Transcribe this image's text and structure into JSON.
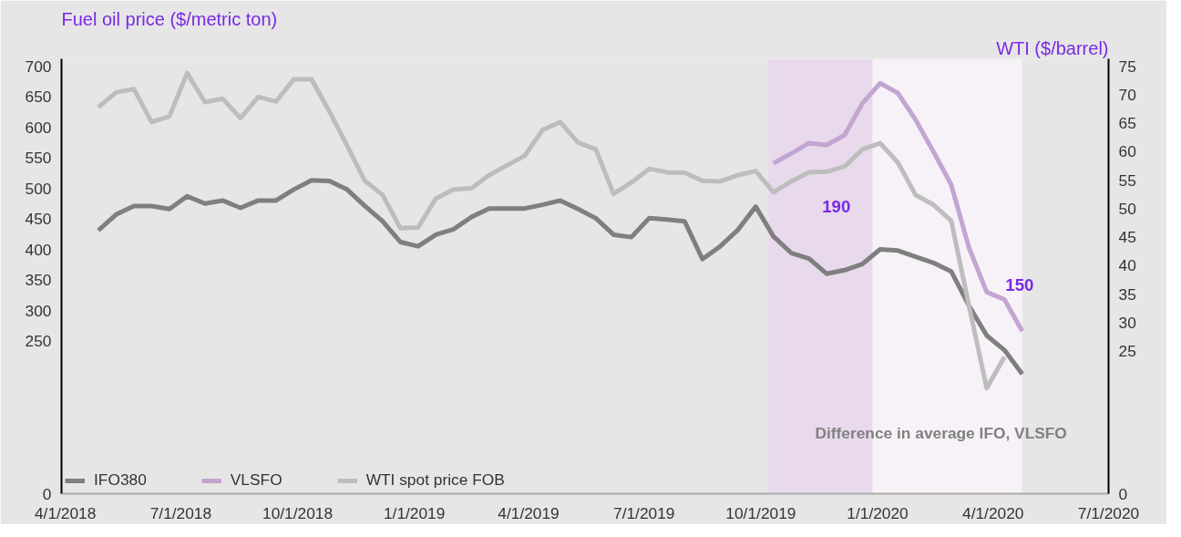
{
  "chart_data": {
    "type": "line",
    "ylabel": "Fuel oil price ($/metric ton)",
    "y2label": "WTI ($/barrel)",
    "x": [
      "2018-04-27",
      "2018-05-11",
      "2018-05-25",
      "2018-06-08",
      "2018-06-22",
      "2018-07-06",
      "2018-07-20",
      "2018-08-03",
      "2018-08-17",
      "2018-08-31",
      "2018-09-14",
      "2018-09-28",
      "2018-10-12",
      "2018-10-26",
      "2018-11-09",
      "2018-11-23",
      "2018-12-07",
      "2018-12-21",
      "2019-01-04",
      "2019-01-18",
      "2019-02-01",
      "2019-02-15",
      "2019-03-01",
      "2019-03-15",
      "2019-03-29",
      "2019-04-12",
      "2019-04-26",
      "2019-05-10",
      "2019-05-24",
      "2019-06-07",
      "2019-06-21",
      "2019-07-05",
      "2019-07-19",
      "2019-08-02",
      "2019-08-16",
      "2019-08-30",
      "2019-09-13",
      "2019-09-27",
      "2019-10-11",
      "2019-10-25",
      "2019-11-08",
      "2019-11-22",
      "2019-12-06",
      "2019-12-20",
      "2020-01-03",
      "2020-01-17",
      "2020-01-31",
      "2020-02-14",
      "2020-02-28",
      "2020-03-13",
      "2020-03-27",
      "2020-04-10",
      "2020-04-24"
    ],
    "series": [
      {
        "name": "IFO380",
        "color": "#7f7f7f",
        "values": [
          431,
          457,
          471,
          471,
          466,
          487,
          475,
          480,
          468,
          480,
          480,
          498,
          513,
          512,
          498,
          471,
          446,
          412,
          405,
          424,
          433,
          453,
          467,
          467,
          467,
          473,
          480,
          466,
          451,
          424,
          420,
          451,
          449,
          446,
          384,
          405,
          432,
          470,
          421,
          394,
          385,
          360,
          366,
          376,
          400,
          398,
          388,
          378,
          364,
          308,
          259,
          235,
          196
        ]
      },
      {
        "name": "VLSFO",
        "color": "#c3a5d1",
        "values": [
          null,
          null,
          null,
          null,
          null,
          null,
          null,
          null,
          null,
          null,
          null,
          null,
          null,
          null,
          null,
          null,
          null,
          null,
          null,
          null,
          null,
          null,
          null,
          null,
          null,
          null,
          null,
          null,
          null,
          null,
          null,
          null,
          null,
          null,
          null,
          null,
          null,
          null,
          541,
          557,
          574,
          571,
          587,
          639,
          672,
          656,
          612,
          560,
          506,
          403,
          330,
          318,
          266
        ]
      },
      {
        "name": "WTI spot price FOB",
        "color": "#bdbdbd",
        "axis": "y2",
        "values": [
          67.8,
          70.4,
          71.0,
          65.2,
          66.2,
          73.8,
          68.7,
          69.3,
          65.9,
          69.6,
          68.8,
          72.7,
          72.7,
          67.1,
          61.1,
          54.9,
          52.4,
          46.6,
          46.7,
          51.8,
          53.4,
          53.6,
          55.9,
          57.6,
          59.3,
          63.8,
          65.2,
          61.6,
          60.4,
          52.6,
          54.6,
          57.0,
          56.4,
          56.3,
          54.9,
          54.8,
          55.9,
          56.6,
          52.9,
          54.8,
          56.4,
          56.5,
          57.4,
          60.4,
          61.5,
          58.1,
          52.4,
          50.7,
          47.9,
          33.0,
          18.5,
          24.0,
          null
        ]
      }
    ],
    "xlim": [
      "2018-03-29",
      "2020-07-01"
    ],
    "xticks": [
      {
        "value": "2018-04-01",
        "label": "4/1/2018"
      },
      {
        "value": "2018-07-01",
        "label": "7/1/2018"
      },
      {
        "value": "2018-10-01",
        "label": "10/1/2018"
      },
      {
        "value": "2019-01-01",
        "label": "1/1/2019"
      },
      {
        "value": "2019-04-01",
        "label": "4/1/2019"
      },
      {
        "value": "2019-07-01",
        "label": "7/1/2019"
      },
      {
        "value": "2019-10-01",
        "label": "10/1/2019"
      },
      {
        "value": "2020-01-01",
        "label": "1/1/2020"
      },
      {
        "value": "2020-04-01",
        "label": "4/1/2020"
      },
      {
        "value": "2020-07-01",
        "label": "7/1/2020"
      }
    ],
    "ylim": [
      0,
      712
    ],
    "yticks": [
      0,
      250,
      300,
      350,
      400,
      450,
      500,
      550,
      600,
      650,
      700
    ],
    "y2lim": [
      0,
      76.3
    ],
    "y2ticks": [
      0,
      25,
      30,
      35,
      40,
      45,
      50,
      55,
      60,
      65,
      70,
      75
    ],
    "bands": [
      {
        "axis": "x",
        "from": "2019-10-07",
        "to": "2019-12-28",
        "color": "#e8d9ec"
      },
      {
        "axis": "x",
        "from": "2019-12-28",
        "to": "2020-04-24",
        "color": "#f7f2f7"
      }
    ],
    "annotations": [
      "190",
      "150",
      "Difference in average IFO, VLSFO"
    ],
    "legend": "bottom",
    "marker": "none",
    "line_style": "solid"
  }
}
